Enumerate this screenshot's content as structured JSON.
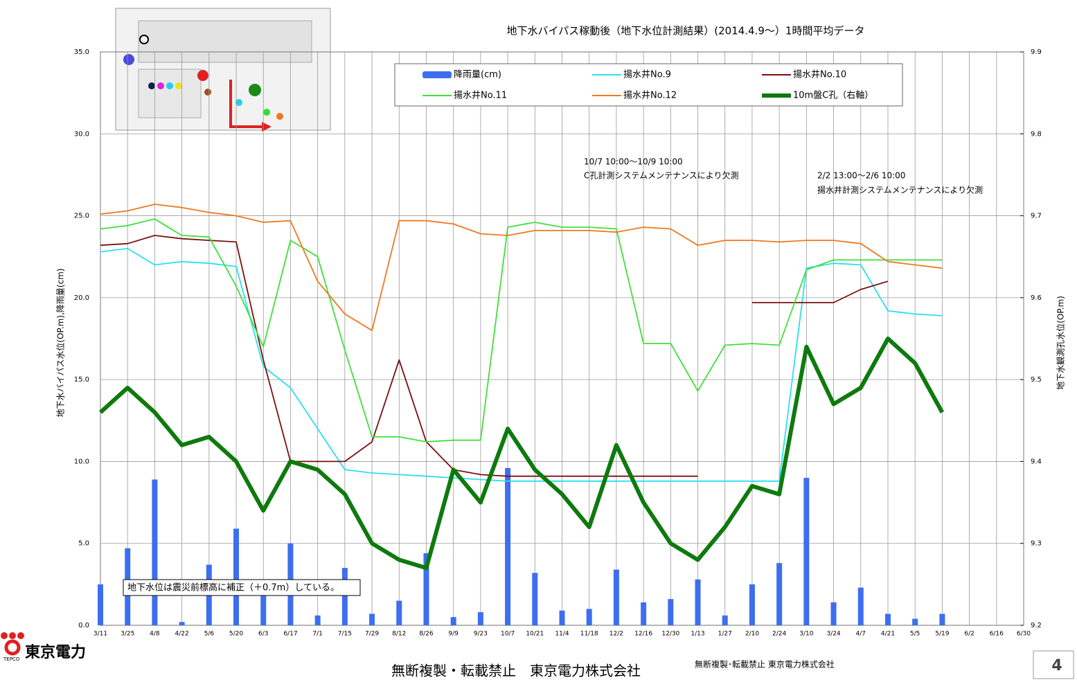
{
  "chart_data": {
    "type": "line",
    "title": "地下水バイパス稼動後（地下水位計測結果）(2014.4.9〜）1時間平均データ",
    "y_label": "地下水バイパス水位(OP.m),降雨量(cm)",
    "y2_label": "地下水観測孔水位(OP.m)",
    "categories": [
      "3/11",
      "3/25",
      "4/8",
      "4/22",
      "5/6",
      "5/20",
      "6/3",
      "6/17",
      "7/1",
      "7/15",
      "7/29",
      "8/12",
      "8/26",
      "9/9",
      "9/23",
      "10/7",
      "10/21",
      "11/4",
      "11/18",
      "12/2",
      "12/16",
      "12/30",
      "1/13",
      "1/27",
      "2/10",
      "2/24",
      "3/10",
      "3/24",
      "4/7",
      "4/21",
      "5/5",
      "5/19",
      "6/2",
      "6/16",
      "6/30"
    ],
    "ylim": [
      0,
      35
    ],
    "yticks": [
      {
        "value": 0,
        "label": "0.0"
      },
      {
        "value": 5,
        "label": "5.0"
      },
      {
        "value": 10,
        "label": "10.0"
      },
      {
        "value": 15,
        "label": "15.0"
      },
      {
        "value": 20,
        "label": "20.0"
      },
      {
        "value": 25,
        "label": "25.0"
      },
      {
        "value": 30,
        "label": "30.0"
      },
      {
        "value": 35,
        "label": "35.0"
      }
    ],
    "y2lim": [
      9.2,
      9.9
    ],
    "y2ticks": [
      9.2,
      9.3,
      9.4,
      9.5,
      9.6,
      9.7,
      9.8,
      9.9
    ],
    "grid": true,
    "series": [
      {
        "name": "降雨量(cm)",
        "type": "bar",
        "color": "#3d6ef0",
        "values": [
          2.5,
          4.7,
          8.9,
          0.2,
          3.7,
          5.9,
          2.5,
          5.0,
          0.6,
          3.5,
          0.7,
          1.5,
          4.4,
          0.5,
          0.8,
          9.6,
          3.2,
          0.9,
          1.0,
          3.4,
          1.4,
          1.6,
          2.8,
          0.6,
          2.5,
          3.8,
          9.0,
          1.4,
          2.3,
          0.7,
          0.4,
          0.7,
          null,
          null,
          null
        ]
      },
      {
        "name": "揚水井No.9",
        "color": "#28e0f0",
        "values": [
          22.8,
          23.0,
          22.0,
          22.2,
          22.1,
          21.9,
          15.8,
          14.5,
          12.0,
          9.5,
          9.3,
          9.2,
          9.1,
          9.0,
          8.9,
          8.8,
          8.8,
          8.8,
          8.8,
          8.8,
          8.8,
          8.8,
          8.8,
          8.8,
          8.8,
          8.8,
          21.8,
          22.1,
          22.0,
          19.2,
          19.0,
          18.9,
          null,
          null,
          null
        ]
      },
      {
        "name": "揚水井No.10",
        "color": "#7a1010",
        "values": [
          23.2,
          23.3,
          23.8,
          23.6,
          23.5,
          23.4,
          16.2,
          10.0,
          10.0,
          10.0,
          11.2,
          16.2,
          11.2,
          9.5,
          9.2,
          9.1,
          9.1,
          9.1,
          9.1,
          9.1,
          9.1,
          9.1,
          9.1,
          null,
          19.7,
          19.7,
          19.7,
          19.7,
          20.5,
          21.0,
          null,
          null,
          null,
          null,
          null
        ]
      },
      {
        "name": "揚水井No.11",
        "color": "#3ee03a",
        "values": [
          24.2,
          24.4,
          24.8,
          23.8,
          23.7,
          20.7,
          17.0,
          23.5,
          22.5,
          16.8,
          11.5,
          11.5,
          11.2,
          11.3,
          11.3,
          24.3,
          24.6,
          24.3,
          24.3,
          24.2,
          17.2,
          17.2,
          14.3,
          17.1,
          17.2,
          17.1,
          21.7,
          22.3,
          22.3,
          22.3,
          22.3,
          22.3,
          null,
          null,
          null
        ]
      },
      {
        "name": "揚水井No.12",
        "color": "#f07820",
        "values": [
          25.1,
          25.3,
          25.7,
          25.5,
          25.2,
          25.0,
          24.6,
          24.7,
          21.0,
          19.0,
          18.0,
          24.7,
          24.7,
          24.5,
          23.9,
          23.8,
          24.1,
          24.1,
          24.1,
          24.0,
          24.3,
          24.2,
          23.2,
          23.5,
          23.5,
          23.4,
          23.5,
          23.5,
          23.3,
          22.2,
          22.0,
          21.8,
          null,
          null,
          null
        ]
      },
      {
        "name": "10m盤C孔（右軸）",
        "color": "#0e7a0e",
        "axis": "y2",
        "values": [
          9.46,
          9.49,
          9.46,
          9.42,
          9.43,
          9.4,
          9.34,
          9.4,
          9.39,
          9.36,
          9.3,
          9.28,
          9.27,
          9.39,
          9.35,
          9.44,
          9.39,
          9.36,
          9.32,
          9.42,
          9.35,
          9.3,
          9.28,
          9.32,
          9.37,
          9.36,
          9.54,
          9.47,
          9.49,
          9.55,
          9.52,
          9.46,
          null,
          null,
          null
        ]
      }
    ],
    "annotations": [
      "10/7 10:00〜10/9  10:00",
      "C孔計測システムメンテナンスにより欠測",
      "2/2 13:00〜2/6  10:00",
      "揚水井計測システムメンテナンスにより欠測",
      "地下水位は震災前標高に補正（＋0.7m）している。"
    ]
  },
  "footer": {
    "company": "東京電力",
    "logo_text": "TEPCO",
    "copyright": "無断複製・転載禁止　東京電力株式会社",
    "copyright_small": "無断複製･転載禁止  東京電力株式会社",
    "page": "4"
  }
}
